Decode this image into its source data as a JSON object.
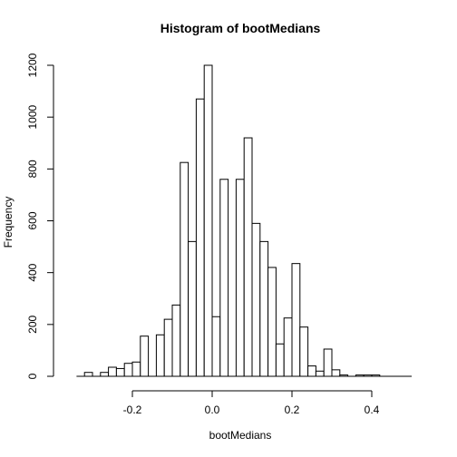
{
  "chart_data": {
    "type": "bar",
    "title": "Histogram of bootMedians",
    "xlabel": "bootMedians",
    "ylabel": "Frequency",
    "bin_width": 0.02,
    "bins": [
      {
        "start": -0.32,
        "end": -0.3,
        "count": 15
      },
      {
        "start": -0.3,
        "end": -0.28,
        "count": 0
      },
      {
        "start": -0.28,
        "end": -0.26,
        "count": 15
      },
      {
        "start": -0.26,
        "end": -0.24,
        "count": 35
      },
      {
        "start": -0.24,
        "end": -0.22,
        "count": 30
      },
      {
        "start": -0.22,
        "end": -0.2,
        "count": 50
      },
      {
        "start": -0.2,
        "end": -0.18,
        "count": 55
      },
      {
        "start": -0.18,
        "end": -0.16,
        "count": 155
      },
      {
        "start": -0.16,
        "end": -0.14,
        "count": 0
      },
      {
        "start": -0.14,
        "end": -0.12,
        "count": 160
      },
      {
        "start": -0.12,
        "end": -0.1,
        "count": 220
      },
      {
        "start": -0.1,
        "end": -0.08,
        "count": 275
      },
      {
        "start": -0.08,
        "end": -0.06,
        "count": 825
      },
      {
        "start": -0.06,
        "end": -0.04,
        "count": 520
      },
      {
        "start": -0.04,
        "end": -0.02,
        "count": 1070
      },
      {
        "start": -0.02,
        "end": 0.0,
        "count": 1200
      },
      {
        "start": 0.0,
        "end": 0.02,
        "count": 230
      },
      {
        "start": 0.02,
        "end": 0.04,
        "count": 760
      },
      {
        "start": 0.04,
        "end": 0.06,
        "count": 0
      },
      {
        "start": 0.06,
        "end": 0.08,
        "count": 760
      },
      {
        "start": 0.08,
        "end": 0.1,
        "count": 920
      },
      {
        "start": 0.1,
        "end": 0.12,
        "count": 590
      },
      {
        "start": 0.12,
        "end": 0.14,
        "count": 520
      },
      {
        "start": 0.14,
        "end": 0.16,
        "count": 420
      },
      {
        "start": 0.16,
        "end": 0.18,
        "count": 125
      },
      {
        "start": 0.18,
        "end": 0.2,
        "count": 225
      },
      {
        "start": 0.2,
        "end": 0.22,
        "count": 435
      },
      {
        "start": 0.22,
        "end": 0.24,
        "count": 190
      },
      {
        "start": 0.24,
        "end": 0.26,
        "count": 40
      },
      {
        "start": 0.26,
        "end": 0.28,
        "count": 20
      },
      {
        "start": 0.28,
        "end": 0.3,
        "count": 105
      },
      {
        "start": 0.3,
        "end": 0.32,
        "count": 25
      },
      {
        "start": 0.32,
        "end": 0.34,
        "count": 5
      },
      {
        "start": 0.34,
        "end": 0.36,
        "count": 0
      },
      {
        "start": 0.36,
        "end": 0.38,
        "count": 5
      },
      {
        "start": 0.38,
        "end": 0.4,
        "count": 5
      },
      {
        "start": 0.4,
        "end": 0.42,
        "count": 5
      }
    ],
    "xlim": [
      -0.34,
      0.5
    ],
    "ylim": [
      0,
      1200
    ],
    "x_ticks": [
      -0.2,
      0.0,
      0.2,
      0.4
    ],
    "x_tick_labels": [
      "-0.2",
      "0.0",
      "0.2",
      "0.4"
    ],
    "y_ticks": [
      0,
      200,
      400,
      600,
      800,
      1000,
      1200
    ],
    "y_tick_labels": [
      "0",
      "200",
      "400",
      "600",
      "800",
      "1000",
      "1200"
    ],
    "grid": false,
    "legend": "none"
  }
}
